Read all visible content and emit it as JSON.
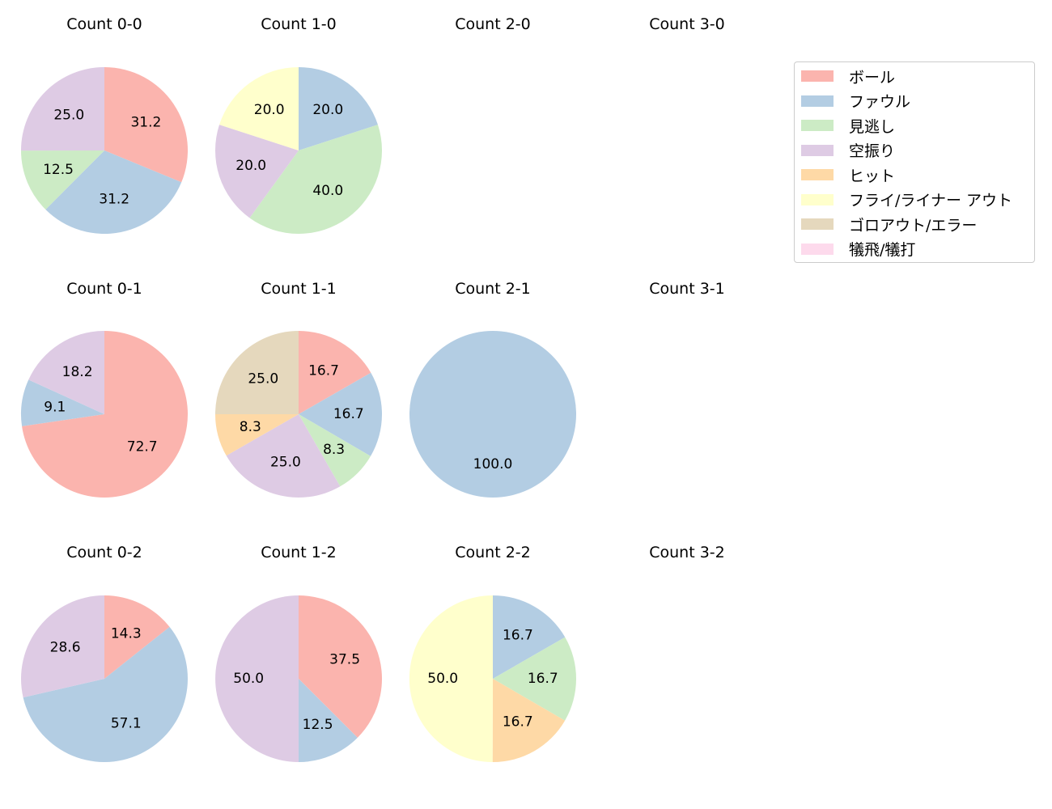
{
  "chart_data": {
    "type": "pie",
    "title": "",
    "legend": {
      "position": "top-right",
      "entries": [
        "ボール",
        "ファウル",
        "見逃し",
        "空振り",
        "ヒット",
        "フライ/ライナー アウト",
        "ゴロアウト/エラー",
        "犠飛/犠打"
      ]
    },
    "colors": [
      "#fbb4ae",
      "#b3cde3",
      "#ccebc5",
      "#decbe4",
      "#fed9a6",
      "#ffffcc",
      "#e5d8bd",
      "#fddaec"
    ],
    "subplots": [
      {
        "title": "Count 0-0",
        "slices": [
          {
            "category": "ボール",
            "value": 31.2
          },
          {
            "category": "ファウル",
            "value": 31.2
          },
          {
            "category": "見逃し",
            "value": 12.5
          },
          {
            "category": "空振り",
            "value": 25.0
          }
        ]
      },
      {
        "title": "Count 1-0",
        "slices": [
          {
            "category": "ファウル",
            "value": 20.0
          },
          {
            "category": "見逃し",
            "value": 40.0
          },
          {
            "category": "空振り",
            "value": 20.0
          },
          {
            "category": "フライ/ライナー アウト",
            "value": 20.0
          }
        ]
      },
      {
        "title": "Count 2-0",
        "slices": []
      },
      {
        "title": "Count 3-0",
        "slices": []
      },
      {
        "title": "Count 0-1",
        "slices": [
          {
            "category": "ボール",
            "value": 72.7
          },
          {
            "category": "ファウル",
            "value": 9.1
          },
          {
            "category": "空振り",
            "value": 18.2
          }
        ]
      },
      {
        "title": "Count 1-1",
        "slices": [
          {
            "category": "ボール",
            "value": 16.7
          },
          {
            "category": "ファウル",
            "value": 16.7
          },
          {
            "category": "見逃し",
            "value": 8.3
          },
          {
            "category": "空振り",
            "value": 25.0
          },
          {
            "category": "ヒット",
            "value": 8.3
          },
          {
            "category": "ゴロアウト/エラー",
            "value": 25.0
          }
        ]
      },
      {
        "title": "Count 2-1",
        "slices": [
          {
            "category": "ファウル",
            "value": 100.0
          }
        ]
      },
      {
        "title": "Count 3-1",
        "slices": []
      },
      {
        "title": "Count 0-2",
        "slices": [
          {
            "category": "ボール",
            "value": 14.3
          },
          {
            "category": "ファウル",
            "value": 57.1
          },
          {
            "category": "空振り",
            "value": 28.6
          }
        ]
      },
      {
        "title": "Count 1-2",
        "slices": [
          {
            "category": "ボール",
            "value": 37.5
          },
          {
            "category": "ファウル",
            "value": 12.5
          },
          {
            "category": "空振り",
            "value": 50.0
          }
        ]
      },
      {
        "title": "Count 2-2",
        "slices": [
          {
            "category": "ファウル",
            "value": 16.7
          },
          {
            "category": "見逃し",
            "value": 16.7
          },
          {
            "category": "ヒット",
            "value": 16.7
          },
          {
            "category": "フライ/ライナー アウト",
            "value": 50.0
          }
        ]
      },
      {
        "title": "Count 3-2",
        "slices": []
      }
    ]
  }
}
